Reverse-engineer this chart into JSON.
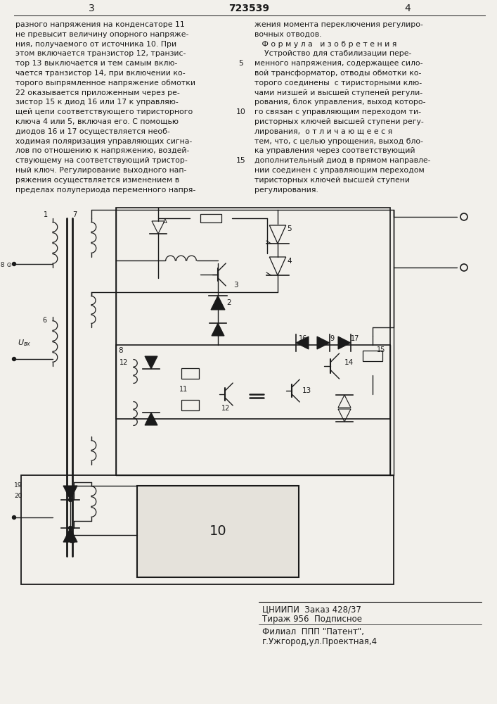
{
  "page_width": 7.07,
  "page_height": 10.0,
  "bg_color": "#f2f0eb",
  "header_page_left": "3",
  "header_page_center": "723539",
  "header_page_right": "4",
  "left_col_text": [
    "разного напряжения на конденсаторе 11",
    "не превысит величину опорного напряже-",
    "ния, получаемого от источника 10. При",
    "этом включается транзистор 12, транзис-",
    "тор 13 выключается и тем самым вклю-",
    "чается транзистор 14, при включении ко-",
    "торого выпрямленное напряжение обмотки",
    "22 оказывается приложенным через ре-",
    "зистор 15 к диод 16 или 17 к управляю-",
    "щей цепи соответствующего тиристорного",
    "ключа 4 или 5, включая его. С помощью",
    "диодов 16 и 17 осуществляется необ-",
    "ходимая поляризация управляющих сигна-",
    "лов по отношению к напряжению, воздей-",
    "ствующему на соответствующий тристор-",
    "ный ключ. Регулирование выходного нап-",
    "ряжения осуществляется изменением в",
    "пределах полупериода переменного напря-"
  ],
  "right_col_text": [
    "жения момента переключения регулиро-",
    "вочных отводов.",
    "   Ф о р м у л а   и з о б р е т е н и я",
    "    Устройство для стабилизации пере-",
    "менного напряжения, содержащее сило-",
    "вой трансформатор, отводы обмотки ко-",
    "торого соединены  с тиристорными клю-",
    "чами низшей и высшей ступеней регули-",
    "рования, блок управления, выход которо-",
    "го связан с управляющим переходом ти-",
    "ристорных ключей высшей ступени регу-",
    "лирования,  о т л и ч а ю щ е е с я",
    "тем, что, с целью упрощения, выход бло-",
    "ка управления через соответствующий",
    "дополнительный диод в прямом направле-",
    "нии соединен с управляющим переходом",
    "тиристорных ключей высшей ступени",
    "регулирования."
  ],
  "footer_line1": "ЦНИИПИ  Заказ 428/37",
  "footer_line2": "Тираж 956  Подписное",
  "footer_line3": "Филиал  ППП \"Патент\",",
  "footer_line4": "г.Ужгород,ул.Проектная,4",
  "text_color": "#1a1a1a"
}
